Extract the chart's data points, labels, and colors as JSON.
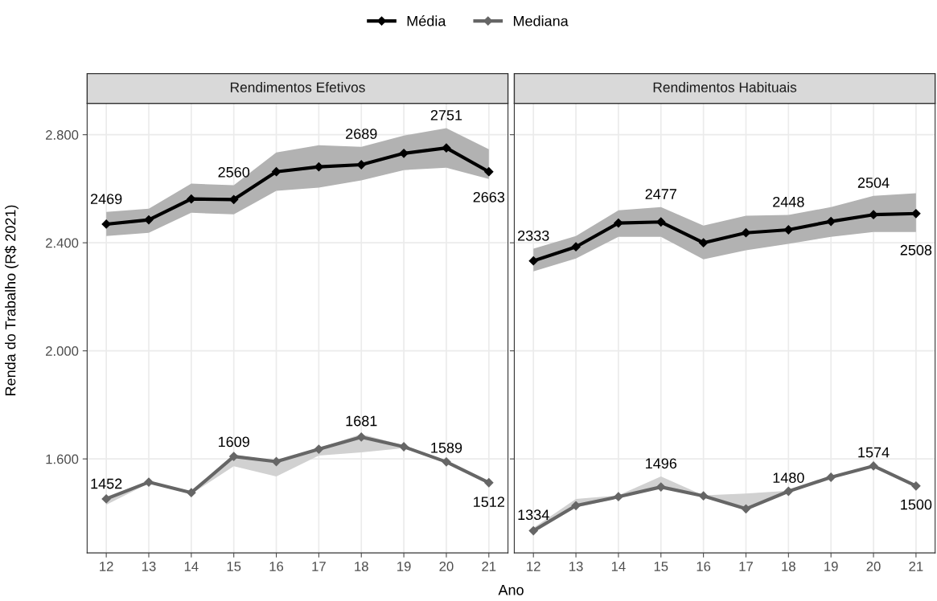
{
  "chart_data": [
    {
      "type": "line",
      "title": "Rendimentos Efetivos",
      "xlabel": "Ano",
      "ylabel": "Renda do Trabalho (R$ 2021)",
      "x": [
        12,
        13,
        14,
        15,
        16,
        17,
        18,
        19,
        20,
        21
      ],
      "xlim": [
        11.55,
        21.45
      ],
      "xticks": [
        12,
        13,
        14,
        15,
        16,
        17,
        18,
        19,
        20,
        21
      ],
      "ylim": [
        1252,
        2916
      ],
      "yticks": [
        {
          "value": 1600,
          "label": "1.600"
        },
        {
          "value": 2000,
          "label": "2.000"
        },
        {
          "value": 2400,
          "label": "2.400"
        },
        {
          "value": 2800,
          "label": "2.800"
        }
      ],
      "grid": true,
      "legend": "top",
      "marker": "diamond",
      "line_style": "solid",
      "series": [
        {
          "name": "Média",
          "color": "#000000",
          "values": [
            2469,
            2485,
            2562,
            2560,
            2663,
            2681,
            2689,
            2731,
            2751,
            2663
          ],
          "lower": [
            2425,
            2437,
            2511,
            2505,
            2592,
            2604,
            2631,
            2669,
            2678,
            2636
          ],
          "upper": [
            2514,
            2526,
            2619,
            2613,
            2734,
            2761,
            2755,
            2797,
            2824,
            2746
          ],
          "value_labels": [
            "2469",
            null,
            null,
            "2560",
            null,
            null,
            "2689",
            null,
            "2751",
            "2663"
          ]
        },
        {
          "name": "Mediana",
          "color": "#666666",
          "values": [
            1452,
            1514,
            1475,
            1609,
            1590,
            1636,
            1681,
            1645,
            1589,
            1512
          ],
          "lower": [
            1430,
            1510,
            1470,
            1573,
            1535,
            1612,
            1624,
            1640,
            1585,
            1508
          ],
          "upper": [
            1460,
            1518,
            1480,
            1615,
            1592,
            1640,
            1692,
            1650,
            1593,
            1516
          ],
          "value_labels": [
            "1452",
            null,
            null,
            "1609",
            null,
            null,
            "1681",
            null,
            "1589",
            "1512"
          ]
        }
      ]
    },
    {
      "type": "line",
      "title": "Rendimentos Habituais",
      "x": [
        12,
        13,
        14,
        15,
        16,
        17,
        18,
        19,
        20,
        21
      ],
      "xlim": [
        11.55,
        21.45
      ],
      "xticks": [
        12,
        13,
        14,
        15,
        16,
        17,
        18,
        19,
        20,
        21
      ],
      "ylim": [
        1252,
        2916
      ],
      "yticks": [
        1600,
        2000,
        2400,
        2800
      ],
      "tick_labels": "x",
      "grid": true,
      "marker": "diamond",
      "line_style": "solid",
      "series": [
        {
          "name": "Média",
          "color": "#000000",
          "values": [
            2333,
            2385,
            2473,
            2477,
            2400,
            2437,
            2448,
            2479,
            2504,
            2508
          ],
          "lower": [
            2294,
            2342,
            2422,
            2422,
            2339,
            2372,
            2396,
            2422,
            2440,
            2440
          ],
          "upper": [
            2378,
            2425,
            2520,
            2532,
            2464,
            2500,
            2503,
            2532,
            2574,
            2583
          ],
          "value_labels": [
            "2333",
            null,
            null,
            "2477",
            null,
            null,
            "2448",
            null,
            "2504",
            "2508"
          ]
        },
        {
          "name": "Mediana",
          "color": "#666666",
          "values": [
            1334,
            1427,
            1460,
            1496,
            1463,
            1415,
            1480,
            1532,
            1574,
            1500
          ],
          "lower": [
            1330,
            1420,
            1455,
            1494,
            1460,
            1412,
            1478,
            1530,
            1572,
            1498
          ],
          "upper": [
            1345,
            1452,
            1465,
            1535,
            1465,
            1472,
            1482,
            1534,
            1576,
            1502
          ],
          "value_labels": [
            "1334",
            null,
            null,
            "1496",
            null,
            null,
            "1480",
            null,
            "1574",
            "1500"
          ]
        }
      ]
    }
  ]
}
